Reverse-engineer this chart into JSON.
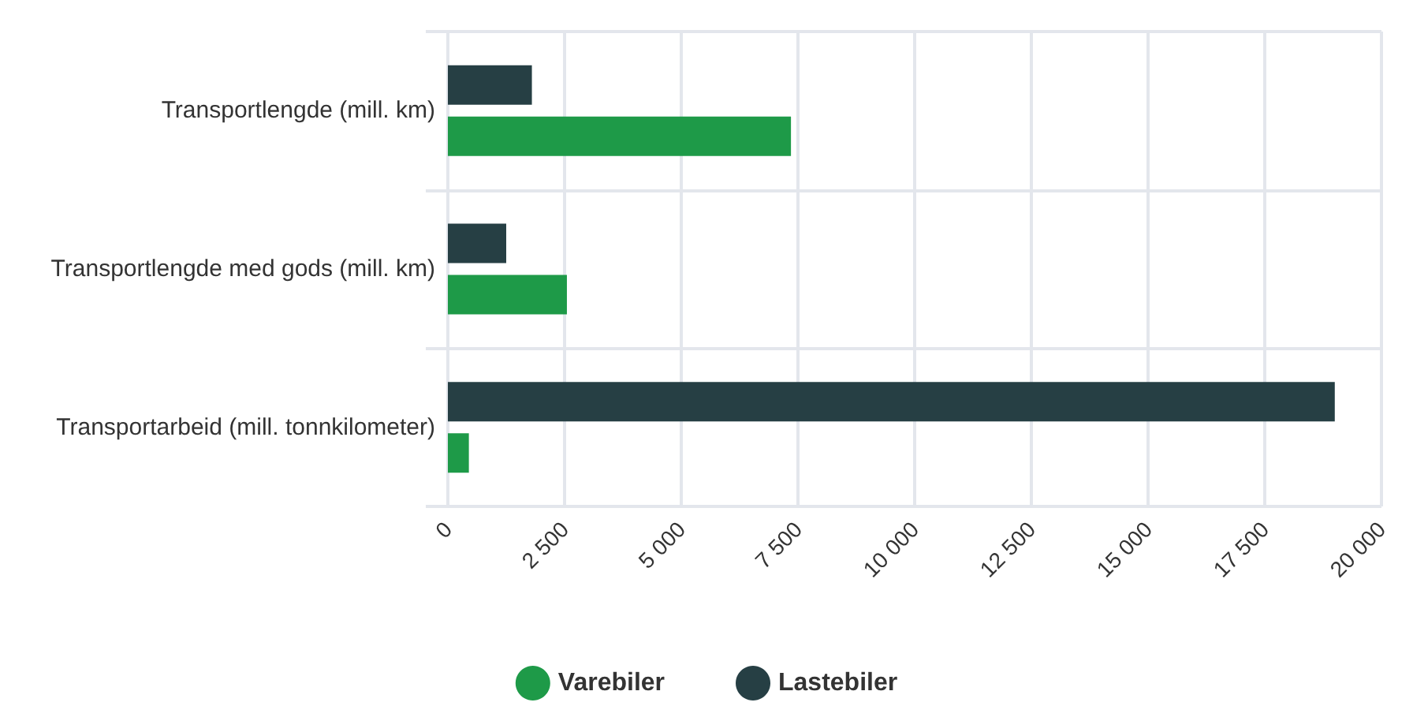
{
  "chart_data": {
    "type": "bar",
    "orientation": "horizontal",
    "categories": [
      "Transportlengde (mill. km)",
      "Transportlengde med gods (mill. km)",
      "Transportarbeid (mill. tonnkilometer)"
    ],
    "series": [
      {
        "name": "Varebiler",
        "color": "#1e9a48",
        "values": [
          7350,
          2550,
          450
        ]
      },
      {
        "name": "Lastebiler",
        "color": "#263f44",
        "values": [
          1800,
          1250,
          19000
        ]
      }
    ],
    "xlim": [
      0,
      20000
    ],
    "xticks": [
      0,
      {
        "value": 2500,
        "label": "2 500"
      },
      {
        "value": 5000,
        "label": "5 000"
      },
      {
        "value": 7500,
        "label": "7 500"
      },
      {
        "value": 10000,
        "label": "10 000"
      },
      {
        "value": 12500,
        "label": "12 500"
      },
      {
        "value": 15000,
        "label": "15 000"
      },
      {
        "value": 17500,
        "label": "17 500"
      },
      {
        "value": 20000,
        "label": "20 000"
      }
    ],
    "grid": true,
    "legend": "bottom"
  }
}
